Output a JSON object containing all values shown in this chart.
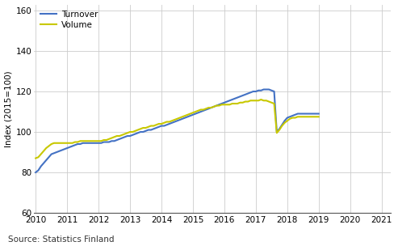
{
  "turnover": [
    80.0,
    81.0,
    83.0,
    84.5,
    86.0,
    87.5,
    89.0,
    89.5,
    90.0,
    90.5,
    91.0,
    91.5,
    92.0,
    92.5,
    93.0,
    93.5,
    94.0,
    94.0,
    94.5,
    94.5,
    94.5,
    94.5,
    94.5,
    94.5,
    94.5,
    94.5,
    95.0,
    95.0,
    95.0,
    95.5,
    95.5,
    96.0,
    96.5,
    97.0,
    97.5,
    98.0,
    98.0,
    98.5,
    99.0,
    99.5,
    100.0,
    100.0,
    100.5,
    101.0,
    101.0,
    101.5,
    102.0,
    102.5,
    103.0,
    103.0,
    103.5,
    104.0,
    104.5,
    105.0,
    105.5,
    106.0,
    106.5,
    107.0,
    107.5,
    108.0,
    108.5,
    109.0,
    109.5,
    110.0,
    110.5,
    111.0,
    111.5,
    112.0,
    112.5,
    113.0,
    113.5,
    114.0,
    114.5,
    115.0,
    115.5,
    116.0,
    116.5,
    117.0,
    117.5,
    118.0,
    118.5,
    119.0,
    119.5,
    120.0,
    120.0,
    120.5,
    120.5,
    121.0,
    121.0,
    121.0,
    120.5,
    120.0,
    100.0,
    101.5,
    103.5,
    105.5,
    107.0,
    107.5,
    108.0,
    108.5,
    109.0,
    109.0,
    109.0,
    109.0,
    109.0,
    109.0,
    109.0,
    109.0,
    109.0
  ],
  "volume": [
    87.0,
    87.5,
    89.0,
    90.5,
    92.0,
    93.0,
    94.0,
    94.5,
    94.5,
    94.5,
    94.5,
    94.5,
    94.5,
    94.5,
    94.5,
    95.0,
    95.0,
    95.5,
    95.5,
    95.5,
    95.5,
    95.5,
    95.5,
    95.5,
    95.5,
    95.5,
    96.0,
    96.0,
    96.5,
    97.0,
    97.5,
    98.0,
    98.0,
    98.5,
    99.0,
    99.5,
    100.0,
    100.0,
    100.5,
    101.0,
    101.5,
    102.0,
    102.0,
    102.5,
    103.0,
    103.0,
    103.5,
    104.0,
    104.0,
    104.5,
    105.0,
    105.0,
    105.5,
    106.0,
    106.5,
    107.0,
    107.5,
    108.0,
    108.5,
    109.0,
    109.5,
    110.0,
    110.5,
    111.0,
    111.0,
    111.5,
    112.0,
    112.0,
    112.5,
    113.0,
    113.0,
    113.5,
    113.5,
    113.5,
    113.5,
    114.0,
    114.0,
    114.0,
    114.5,
    114.5,
    115.0,
    115.0,
    115.5,
    115.5,
    115.5,
    115.5,
    116.0,
    115.5,
    115.5,
    115.0,
    114.5,
    114.0,
    99.5,
    101.0,
    103.0,
    104.5,
    105.5,
    106.5,
    107.0,
    107.0,
    107.5,
    107.5,
    107.5,
    107.5,
    107.5,
    107.5,
    107.5,
    107.5,
    107.5
  ],
  "n_points": 109,
  "x_start": 2010.0,
  "turnover_color": "#4472C4",
  "volume_color": "#C8C800",
  "ylim": [
    60,
    163
  ],
  "yticks": [
    60,
    80,
    100,
    120,
    140,
    160
  ],
  "xlim_start": 2009.95,
  "xlim_end": 2021.3,
  "xtick_years": [
    2010,
    2011,
    2012,
    2013,
    2014,
    2015,
    2016,
    2017,
    2018,
    2019,
    2020,
    2021
  ],
  "ylabel": "Index (2015=100)",
  "source_text": "Source: Statistics Finland",
  "legend_labels": [
    "Turnover",
    "Volume"
  ],
  "grid_color": "#cccccc",
  "line_width": 1.5,
  "background_color": "#ffffff"
}
